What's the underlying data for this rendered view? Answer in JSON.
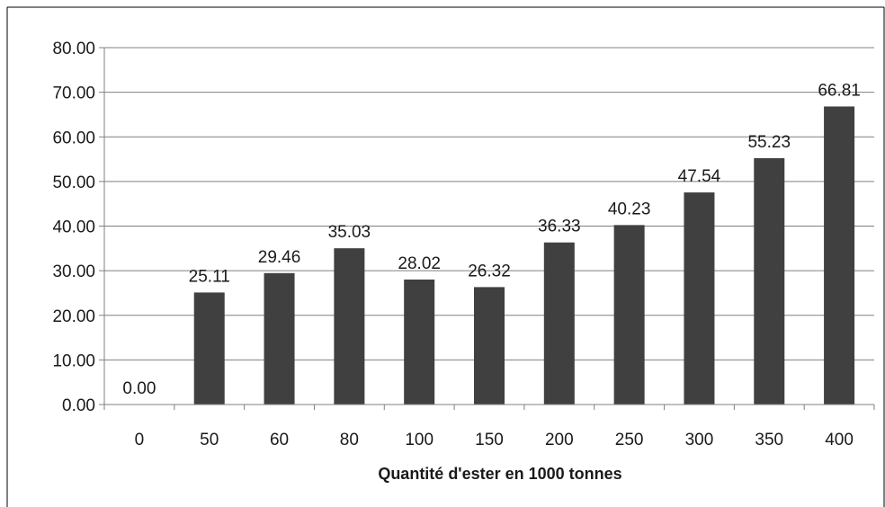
{
  "chart_data": {
    "type": "bar",
    "title": "",
    "xlabel": "Quantité d'ester en 1000 tonnes",
    "ylabel": "",
    "categories": [
      "0",
      "50",
      "60",
      "80",
      "100",
      "150",
      "200",
      "250",
      "300",
      "350",
      "400"
    ],
    "values": [
      0.0,
      25.11,
      29.46,
      35.03,
      28.02,
      26.32,
      36.33,
      40.23,
      47.54,
      55.23,
      66.81
    ],
    "value_labels": [
      "0.00",
      "25.11",
      "29.46",
      "35.03",
      "28.02",
      "26.32",
      "36.33",
      "40.23",
      "47.54",
      "55.23",
      "66.81"
    ],
    "ylim": [
      0,
      80
    ],
    "yticks": [
      0,
      10,
      20,
      30,
      40,
      50,
      60,
      70,
      80
    ],
    "ytick_labels": [
      "0.00",
      "10.00",
      "20.00",
      "30.00",
      "40.00",
      "50.00",
      "60.00",
      "70.00",
      "80.00"
    ],
    "grid": true,
    "legend": "none",
    "bar_color": "#404040",
    "grid_color": "#808080",
    "axis_color": "#808080"
  }
}
